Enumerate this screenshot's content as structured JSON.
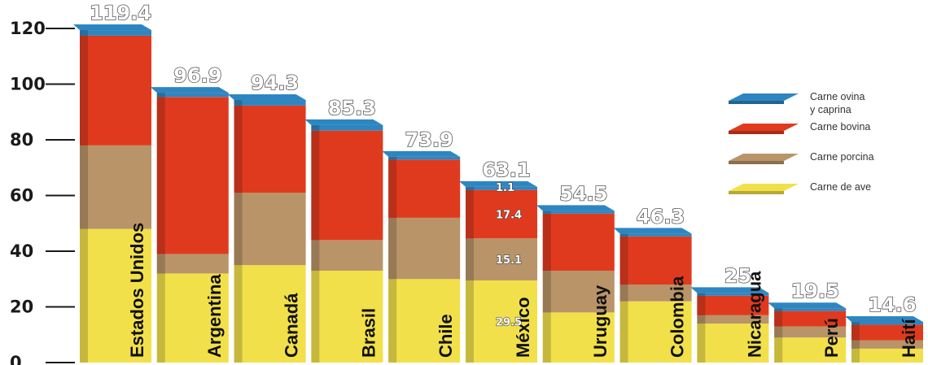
{
  "chart_data": {
    "type": "bar",
    "stacked": true,
    "categories": [
      "Estados Unidos",
      "Argentina",
      "Canadá",
      "Brasil",
      "Chile",
      "México",
      "Uruguay",
      "Colombia",
      "Nicaragua",
      "Perú",
      "Haití"
    ],
    "totals": [
      119.4,
      96.9,
      94.3,
      85.3,
      73.9,
      63.1,
      54.5,
      46.3,
      25,
      19.5,
      14.6
    ],
    "total_labels": [
      "119.4",
      "96.9",
      "94.3",
      "85.3",
      "73.9",
      "63.1",
      "54.5",
      "46.3",
      "25",
      "19.5",
      "14.6"
    ],
    "series": [
      {
        "name": "Carne de ave",
        "color": "#f2e04a",
        "values": [
          48,
          32,
          35,
          33,
          30,
          29.5,
          18,
          22,
          14,
          9,
          5
        ]
      },
      {
        "name": "Carne porcina",
        "color": "#b99468",
        "values": [
          30,
          7,
          26,
          11,
          22,
          15.1,
          15,
          6,
          3,
          4,
          3
        ]
      },
      {
        "name": "Carne bovina",
        "color": "#e03a1e",
        "values": [
          39.4,
          56.4,
          31.3,
          39.3,
          20.9,
          17.4,
          20.5,
          17.3,
          7,
          5.5,
          5.6
        ]
      },
      {
        "name": "Carne ovina\ny caprina",
        "color": "#2e86c1",
        "values": [
          2,
          1.5,
          2,
          2,
          1,
          1.1,
          1,
          1,
          1,
          1,
          1
        ]
      }
    ],
    "segment_labels": [
      {
        "category": "México",
        "series": "Carne de ave",
        "text": "29.5"
      },
      {
        "category": "México",
        "series": "Carne porcina",
        "text": "15.1"
      },
      {
        "category": "México",
        "series": "Carne bovina",
        "text": "17.4"
      },
      {
        "category": "México",
        "series": "Carne ovina\ny caprina",
        "text": "1.1"
      }
    ],
    "y_ticks": [
      "0",
      "20",
      "40",
      "60",
      "80",
      "100",
      "120"
    ],
    "ylim": [
      0,
      120
    ],
    "legend": {
      "position": "right",
      "entries": [
        {
          "lines": [
            "Carne ovina",
            "y caprina"
          ],
          "color": "#2e86c1"
        },
        {
          "lines": [
            "Carne bovina"
          ],
          "color": "#e03a1e"
        },
        {
          "lines": [
            "Carne porcina"
          ],
          "color": "#b99468"
        },
        {
          "lines": [
            "Carne de ave"
          ],
          "color": "#f2e04a"
        }
      ]
    }
  }
}
